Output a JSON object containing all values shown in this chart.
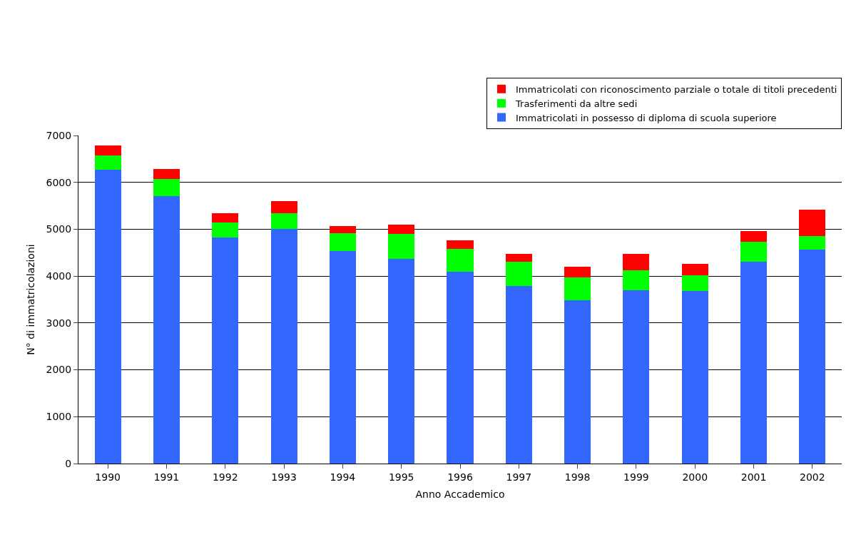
{
  "chart_data": {
    "type": "bar",
    "stacked": true,
    "xlabel": "Anno Accademico",
    "ylabel": "N° di immatricolazioni",
    "categories": [
      "1990",
      "1991",
      "1992",
      "1993",
      "1994",
      "1995",
      "1996",
      "1997",
      "1998",
      "1999",
      "2000",
      "2001",
      "2002"
    ],
    "series": [
      {
        "name": "Immatricolati in possesso di diploma di scuola superiore",
        "color": "#3366ff",
        "values": [
          6270,
          5700,
          4830,
          5000,
          4540,
          4370,
          4100,
          3790,
          3480,
          3700,
          3690,
          4310,
          4570
        ]
      },
      {
        "name": "Trasferimenti da altre sedi",
        "color": "#00ff00",
        "values": [
          300,
          370,
          310,
          340,
          370,
          530,
          480,
          510,
          490,
          420,
          330,
          420,
          280
        ]
      },
      {
        "name": "Immatricolati con riconoscimento parziale o totale di titoli precedenti",
        "color": "#ff0000",
        "values": [
          210,
          220,
          200,
          260,
          160,
          200,
          180,
          170,
          230,
          350,
          240,
          230,
          570
        ]
      }
    ],
    "ylim": [
      0,
      7000
    ],
    "yticks": [
      0,
      1000,
      2000,
      3000,
      4000,
      5000,
      6000,
      7000
    ],
    "grid": "y",
    "legend": "top right"
  }
}
